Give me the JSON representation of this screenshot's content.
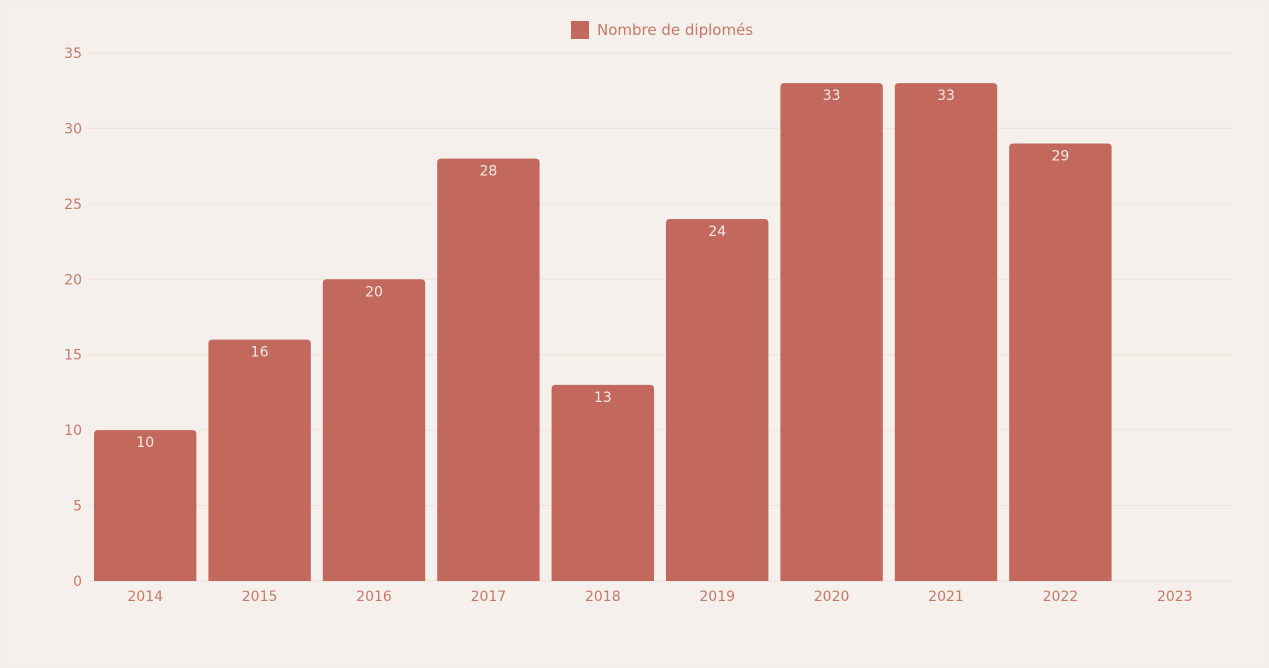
{
  "chart_data": {
    "type": "bar",
    "categories": [
      "2014",
      "2015",
      "2016",
      "2017",
      "2018",
      "2019",
      "2020",
      "2021",
      "2022",
      "2023"
    ],
    "series": [
      {
        "name": "Nombre de diplomés",
        "values": [
          10,
          16,
          20,
          28,
          13,
          24,
          33,
          33,
          29,
          null
        ],
        "color": "#c2685d"
      }
    ],
    "data_labels": [
      "10",
      "16",
      "20",
      "28",
      "13",
      "24",
      "33",
      "33",
      "29",
      ""
    ],
    "y_ticks": [
      "0",
      "5",
      "10",
      "15",
      "20",
      "25",
      "30",
      "35"
    ],
    "ylim": [
      0,
      35
    ],
    "grid": true,
    "legend_position": "top-center"
  },
  "colors": {
    "bar": "#c2685d",
    "tick_text": "#c97868",
    "grid": "#ede3dc",
    "bar_label": "#f7ebe6",
    "background": "#f5f0ec"
  }
}
